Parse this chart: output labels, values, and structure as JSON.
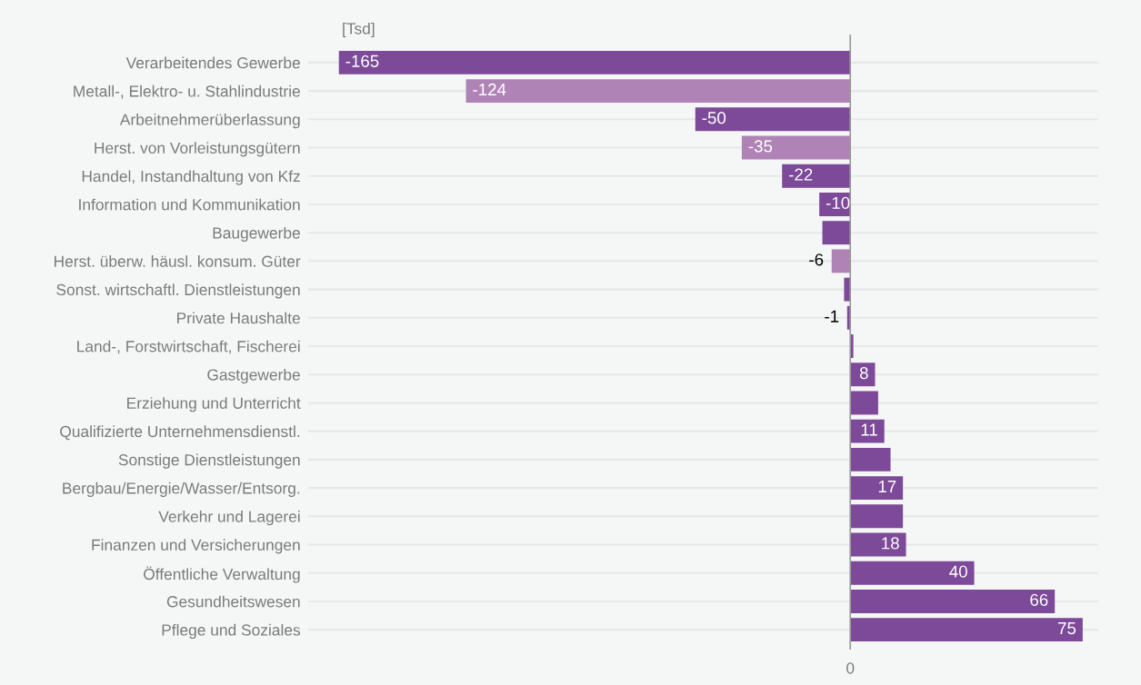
{
  "chart_data": {
    "type": "bar",
    "orientation": "horizontal",
    "categories": [
      "Verarbeitendes Gewerbe",
      "Metall-, Elektro- u. Stahlindustrie",
      "Arbeitnehmerüberlassung",
      "Herst. von Vorleistungsgütern",
      "Handel, Instandhaltung von Kfz",
      "Information und Kommunikation",
      "Baugewerbe",
      "Herst. überw. häusl. konsum. Güter",
      "Sonst. wirtschaftl. Dienstleistungen",
      "Private Haushalte",
      "Land-, Forstwirtschaft, Fischerei",
      "Gastgewerbe",
      "Erziehung und Unterricht",
      "Qualifizierte Unternehmensdienstl.",
      "Sonstige Dienstleistungen",
      "Bergbau/Energie/Wasser/Entsorg.",
      "Verkehr und Lagerei",
      "Finanzen und Versicherungen",
      "Öffentliche Verwaltung",
      "Gesundheitswesen",
      "Pflege und Soziales"
    ],
    "values": [
      -165,
      -124,
      -50,
      -35,
      -22,
      -10,
      -9,
      -6,
      -2,
      -1,
      1,
      8,
      9,
      11,
      13,
      17,
      17,
      18,
      40,
      66,
      75
    ],
    "value_labels": [
      "-165",
      "-124",
      "-50",
      "-35",
      "-22",
      "-10",
      null,
      "-6",
      null,
      "-1",
      null,
      "8",
      null,
      "11",
      null,
      "17",
      null,
      "18",
      "40",
      "66",
      "75"
    ],
    "colors": [
      "#7d4a99",
      "#b083b7",
      "#7d4a99",
      "#b083b7",
      "#7d4a99",
      "#7d4a99",
      "#7d4a99",
      "#b083b7",
      "#7d4a99",
      "#7d4a99",
      "#7d4a99",
      "#7d4a99",
      "#7d4a99",
      "#7d4a99",
      "#7d4a99",
      "#7d4a99",
      "#7d4a99",
      "#7d4a99",
      "#7d4a99",
      "#7d4a99",
      "#7d4a99"
    ],
    "grid": "y",
    "annotations": [
      "[Tsd]",
      "0"
    ]
  }
}
